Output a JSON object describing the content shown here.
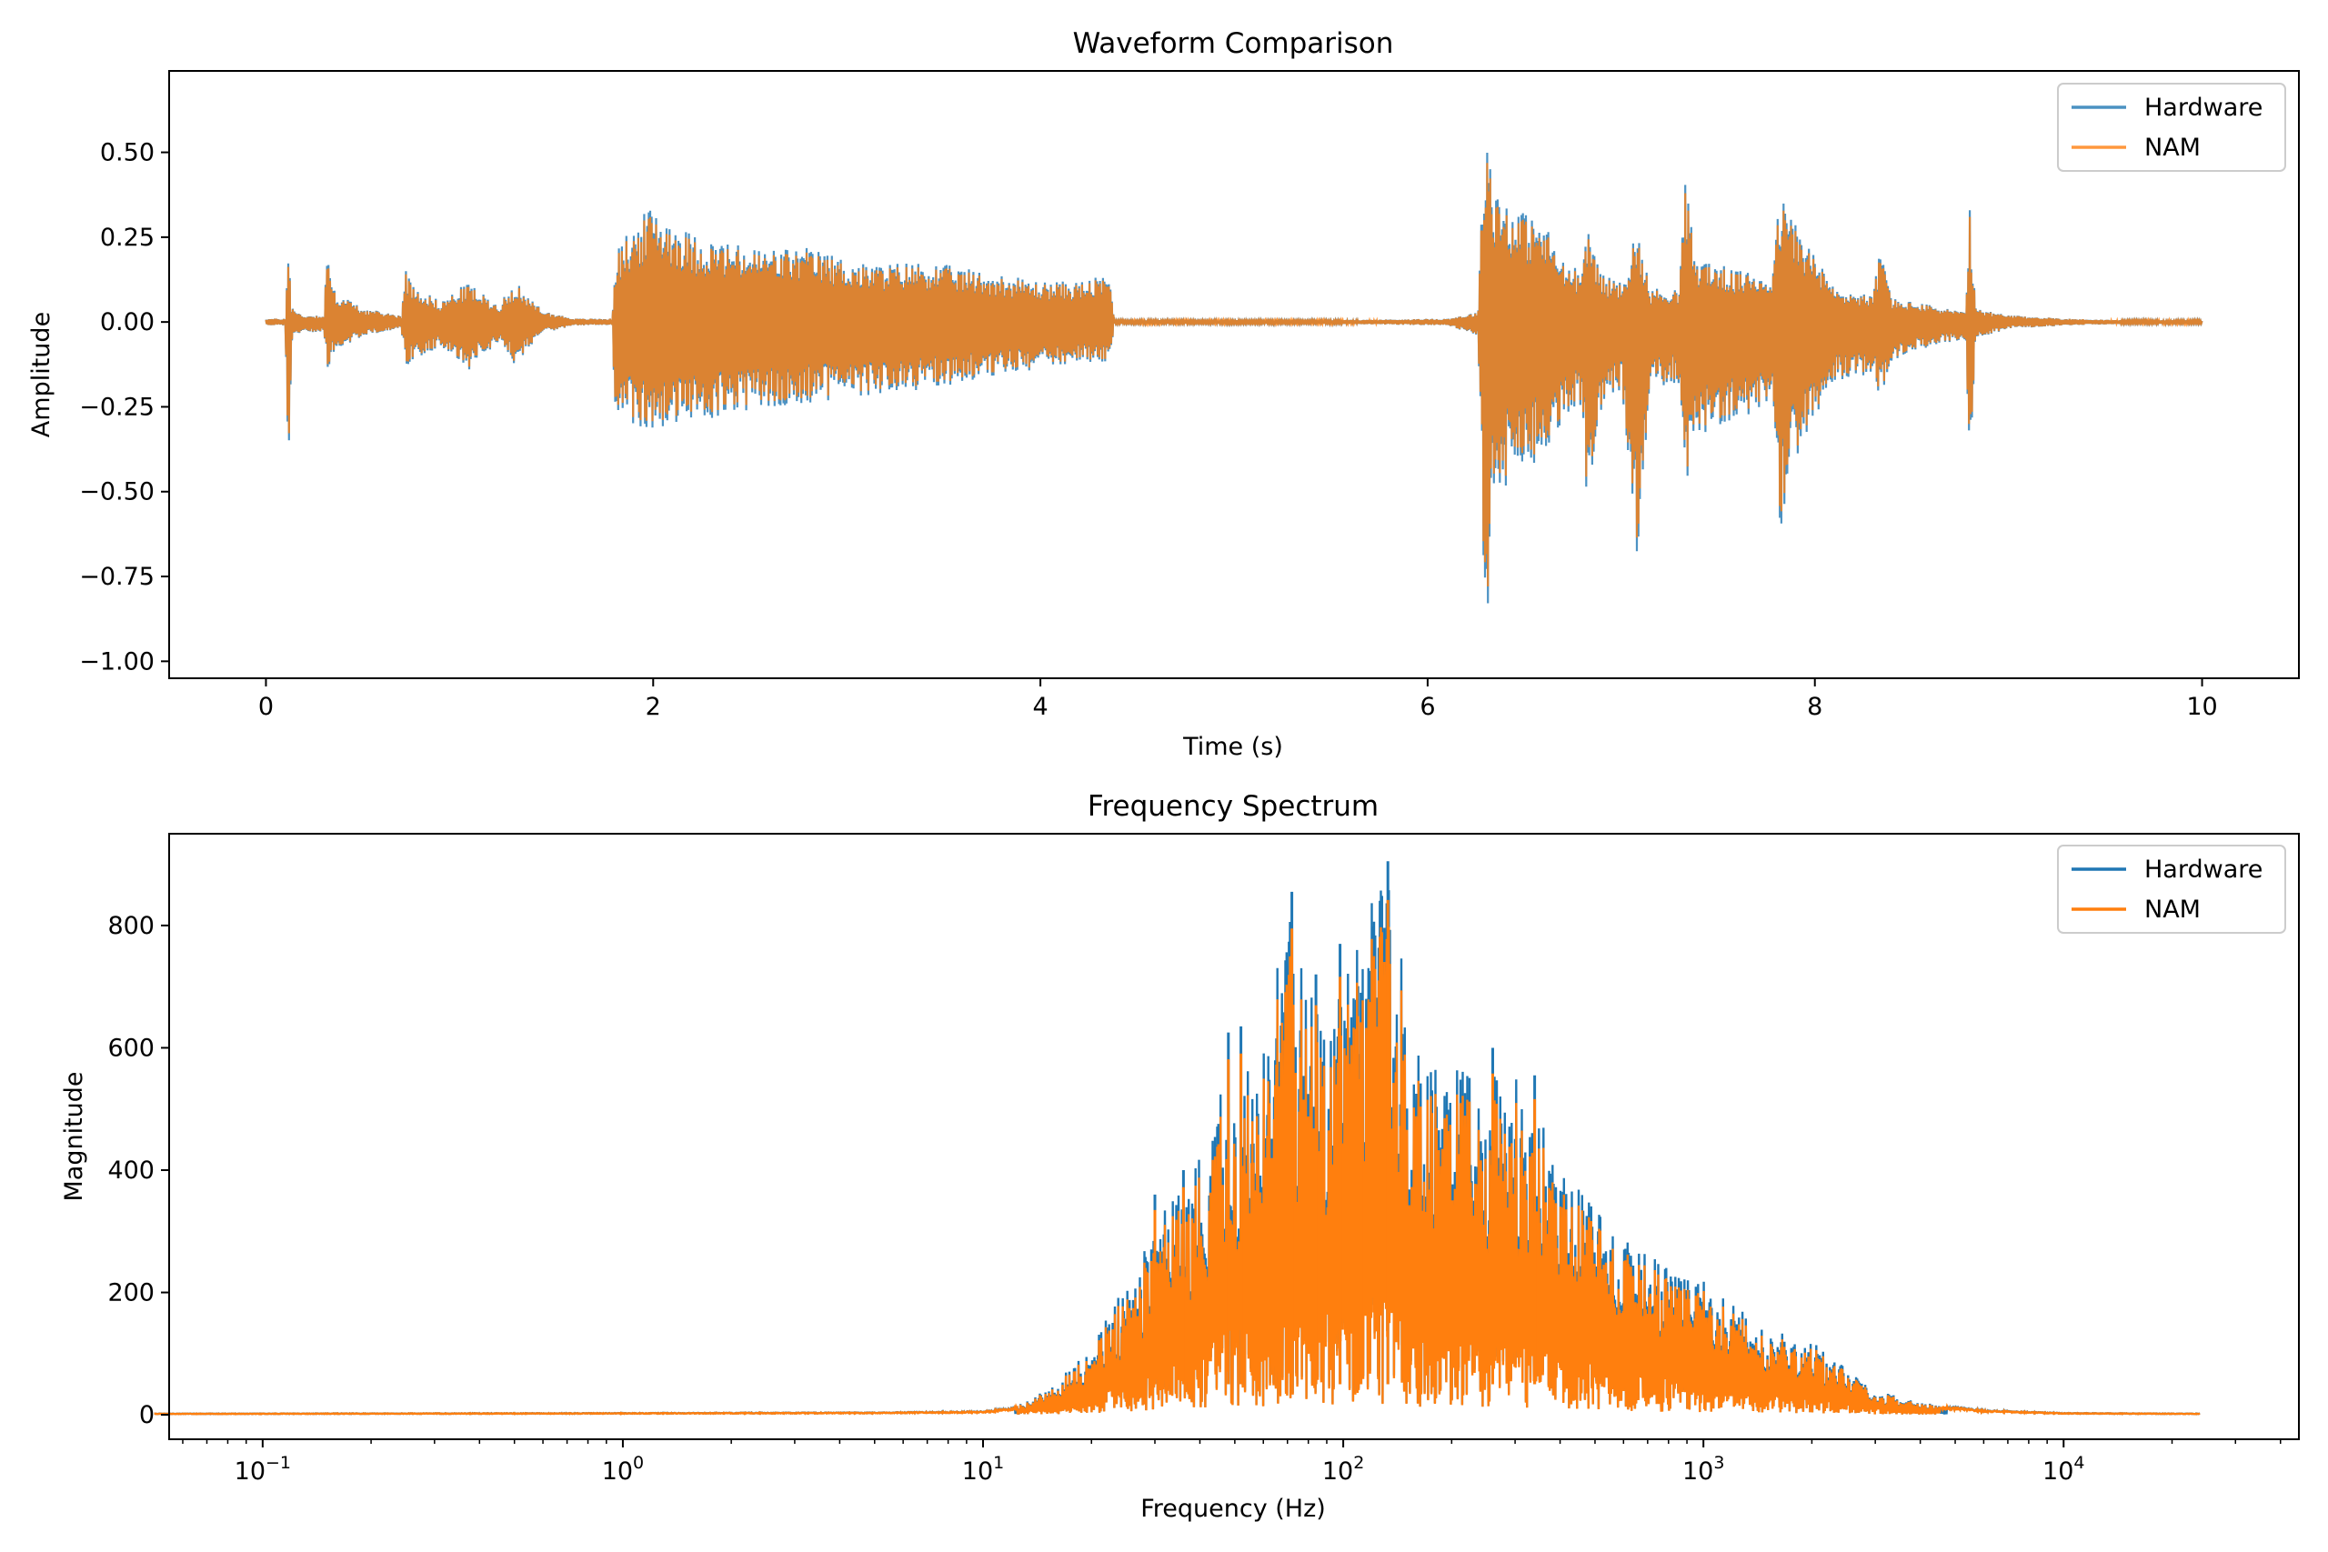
{
  "colors": {
    "hardware": "#1f77b4",
    "nam": "#ff7f0e"
  },
  "chart_data": [
    {
      "type": "line",
      "title": "Waveform Comparison",
      "xlabel": "Time (s)",
      "ylabel": "Amplitude",
      "xlim": [
        -0.5,
        10.5
      ],
      "ylim": [
        -1.05,
        0.74
      ],
      "xticks": [
        0,
        2,
        4,
        6,
        8,
        10
      ],
      "xtick_labels": [
        "0",
        "2",
        "4",
        "6",
        "8",
        "10"
      ],
      "yticks": [
        0.5,
        0.25,
        0.0,
        -0.25,
        -0.5,
        -0.75,
        -1.0
      ],
      "ytick_labels": [
        "0.50",
        "0.25",
        "0.00",
        "−0.25",
        "−0.50",
        "−0.75",
        "−1.00"
      ],
      "legend": {
        "position": "top-right",
        "entries": [
          "Hardware",
          "NAM"
        ]
      },
      "series": [
        {
          "name": "Hardware",
          "envelope": {
            "t": [
              0,
              0.1,
              0.12,
              0.13,
              0.16,
              0.2,
              0.3,
              0.32,
              0.34,
              0.5,
              0.7,
              0.72,
              0.75,
              0.9,
              1.05,
              1.08,
              1.2,
              1.3,
              1.33,
              1.45,
              1.6,
              1.79,
              1.8,
              1.82,
              1.85,
              2.0,
              2.2,
              2.5,
              2.8,
              3.1,
              3.4,
              3.7,
              4.0,
              4.2,
              4.36,
              4.38,
              5.0,
              5.5,
              6.1,
              6.26,
              6.3,
              6.34,
              6.45,
              6.6,
              6.7,
              6.8,
              6.83,
              6.9,
              7.0,
              7.08,
              7.15,
              7.3,
              7.33,
              7.38,
              7.6,
              7.78,
              7.82,
              7.9,
              8.1,
              8.3,
              8.34,
              8.4,
              8.6,
              8.78,
              8.8,
              8.83,
              9.0,
              9.3,
              9.6,
              10.0
            ],
            "upper": [
              0.01,
              0.01,
              0.3,
              0.05,
              0.03,
              0.02,
              0.02,
              0.26,
              0.1,
              0.04,
              0.02,
              0.16,
              0.12,
              0.06,
              0.12,
              0.1,
              0.05,
              0.13,
              0.08,
              0.03,
              0.01,
              0.01,
              0.17,
              0.22,
              0.25,
              0.35,
              0.26,
              0.22,
              0.22,
              0.17,
              0.18,
              0.15,
              0.12,
              0.12,
              0.14,
              0.005,
              0.005,
              0.005,
              0.01,
              0.03,
              0.65,
              0.42,
              0.34,
              0.3,
              0.18,
              0.15,
              0.3,
              0.14,
              0.12,
              0.28,
              0.1,
              0.1,
              0.43,
              0.2,
              0.15,
              0.15,
              0.38,
              0.3,
              0.1,
              0.08,
              0.23,
              0.07,
              0.05,
              0.03,
              0.33,
              0.04,
              0.02,
              0.01,
              0.005,
              0.005
            ],
            "lower": [
              -0.01,
              -0.01,
              -0.57,
              -0.06,
              -0.04,
              -0.03,
              -0.03,
              -0.17,
              -0.1,
              -0.04,
              -0.02,
              -0.13,
              -0.12,
              -0.07,
              -0.14,
              -0.12,
              -0.06,
              -0.14,
              -0.1,
              -0.03,
              -0.01,
              -0.01,
              -0.23,
              -0.27,
              -0.3,
              -0.33,
              -0.3,
              -0.26,
              -0.24,
              -0.22,
              -0.2,
              -0.17,
              -0.14,
              -0.12,
              -0.12,
              -0.005,
              -0.005,
              -0.005,
              -0.01,
              -0.04,
              -1.0,
              -0.55,
              -0.45,
              -0.4,
              -0.3,
              -0.25,
              -0.7,
              -0.25,
              -0.2,
              -0.73,
              -0.2,
              -0.18,
              -0.57,
              -0.35,
              -0.28,
              -0.28,
              -0.67,
              -0.4,
              -0.18,
              -0.15,
              -0.23,
              -0.12,
              -0.07,
              -0.05,
              -0.44,
              -0.05,
              -0.02,
              -0.01,
              -0.005,
              -0.005
            ]
          }
        },
        {
          "name": "NAM",
          "envelope_scale": 0.94
        }
      ]
    },
    {
      "type": "line",
      "title": "Frequency Spectrum",
      "xlabel": "Frequency (Hz)",
      "ylabel": "Magnitude",
      "xscale": "log",
      "xlim": [
        0.055,
        45000
      ],
      "ylim": [
        -40,
        950
      ],
      "xticks": [
        0.1,
        1,
        10,
        100,
        1000,
        10000
      ],
      "xtick_labels": [
        {
          "base": "10",
          "exp": "−1"
        },
        {
          "base": "10",
          "exp": "0"
        },
        {
          "base": "10",
          "exp": "1"
        },
        {
          "base": "10",
          "exp": "2"
        },
        {
          "base": "10",
          "exp": "3"
        },
        {
          "base": "10",
          "exp": "4"
        }
      ],
      "yticks": [
        0,
        200,
        400,
        600,
        800
      ],
      "ytick_labels": [
        "0",
        "200",
        "400",
        "600",
        "800"
      ],
      "legend": {
        "position": "top-right",
        "entries": [
          "Hardware",
          "NAM"
        ]
      },
      "series": [
        {
          "name": "Hardware",
          "envelope": {
            "f": [
              0.05,
              1,
              5,
              10,
              12,
              15,
              20,
              25,
              30,
              35,
              40,
              50,
              60,
              70,
              80,
              100,
              130,
              160,
              200,
              250,
              300,
              350,
              400,
              500,
              700,
              1000,
              1500,
              2000,
              3000,
              4000,
              6000,
              10000,
              24000
            ],
            "peak": [
              2,
              3,
              4,
              6,
              12,
              40,
              110,
              220,
              300,
              400,
              430,
              620,
              600,
              860,
              700,
              700,
              910,
              600,
              560,
              600,
              560,
              500,
              400,
              340,
              260,
              220,
              140,
              120,
              40,
              20,
              8,
              3,
              2
            ]
          },
          "spikes": [
            {
              "f": 72,
              "mag": 855
            },
            {
              "f": 98,
              "mag": 770
            },
            {
              "f": 133,
              "mag": 905
            },
            {
              "f": 52,
              "mag": 635
            },
            {
              "f": 48,
              "mag": 625
            },
            {
              "f": 84,
              "mag": 720
            },
            {
              "f": 112,
              "mag": 690
            },
            {
              "f": 260,
              "mag": 600
            },
            {
              "f": 340,
              "mag": 555
            },
            {
              "f": 36,
              "mag": 400
            },
            {
              "f": 30,
              "mag": 360
            }
          ]
        },
        {
          "name": "NAM",
          "envelope_scale": 0.93
        }
      ]
    }
  ]
}
